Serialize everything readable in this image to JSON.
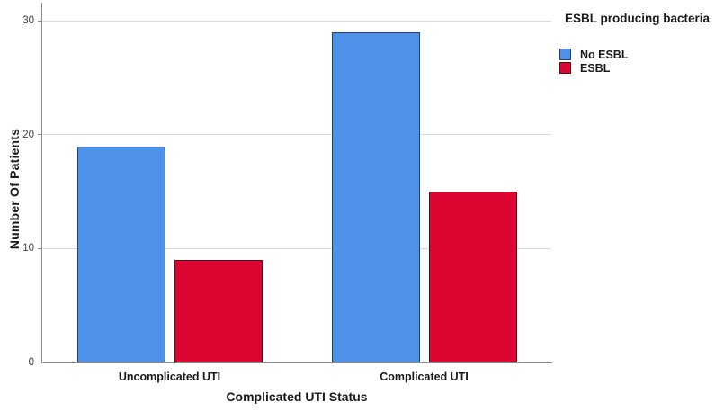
{
  "chart_data": {
    "type": "bar",
    "title": "",
    "categories": [
      "Uncomplicated UTI",
      "Complicated UTI"
    ],
    "series": [
      {
        "name": "No ESBL",
        "values": [
          19,
          29
        ],
        "color": "#4D92E8",
        "border": "#24436B"
      },
      {
        "name": "ESBL",
        "values": [
          9,
          15
        ],
        "color": "#DC0430",
        "border": "#55101D"
      }
    ],
    "xlabel": "Complicated UTI Status",
    "ylabel": "Number Of Patients",
    "ylim": [
      0,
      31.6
    ],
    "yticks": [
      0,
      10,
      20,
      30
    ],
    "grid": "horizontal",
    "legend": {
      "title": "ESBL producing bacteria",
      "position": "outside-top-right"
    }
  },
  "colors": {
    "background": "#FFFFFF",
    "gridline": "#D8D8D8",
    "axis_line": "#8A8A8A",
    "tick_label": "#3F3F3F",
    "text": "#1A1A1A"
  }
}
